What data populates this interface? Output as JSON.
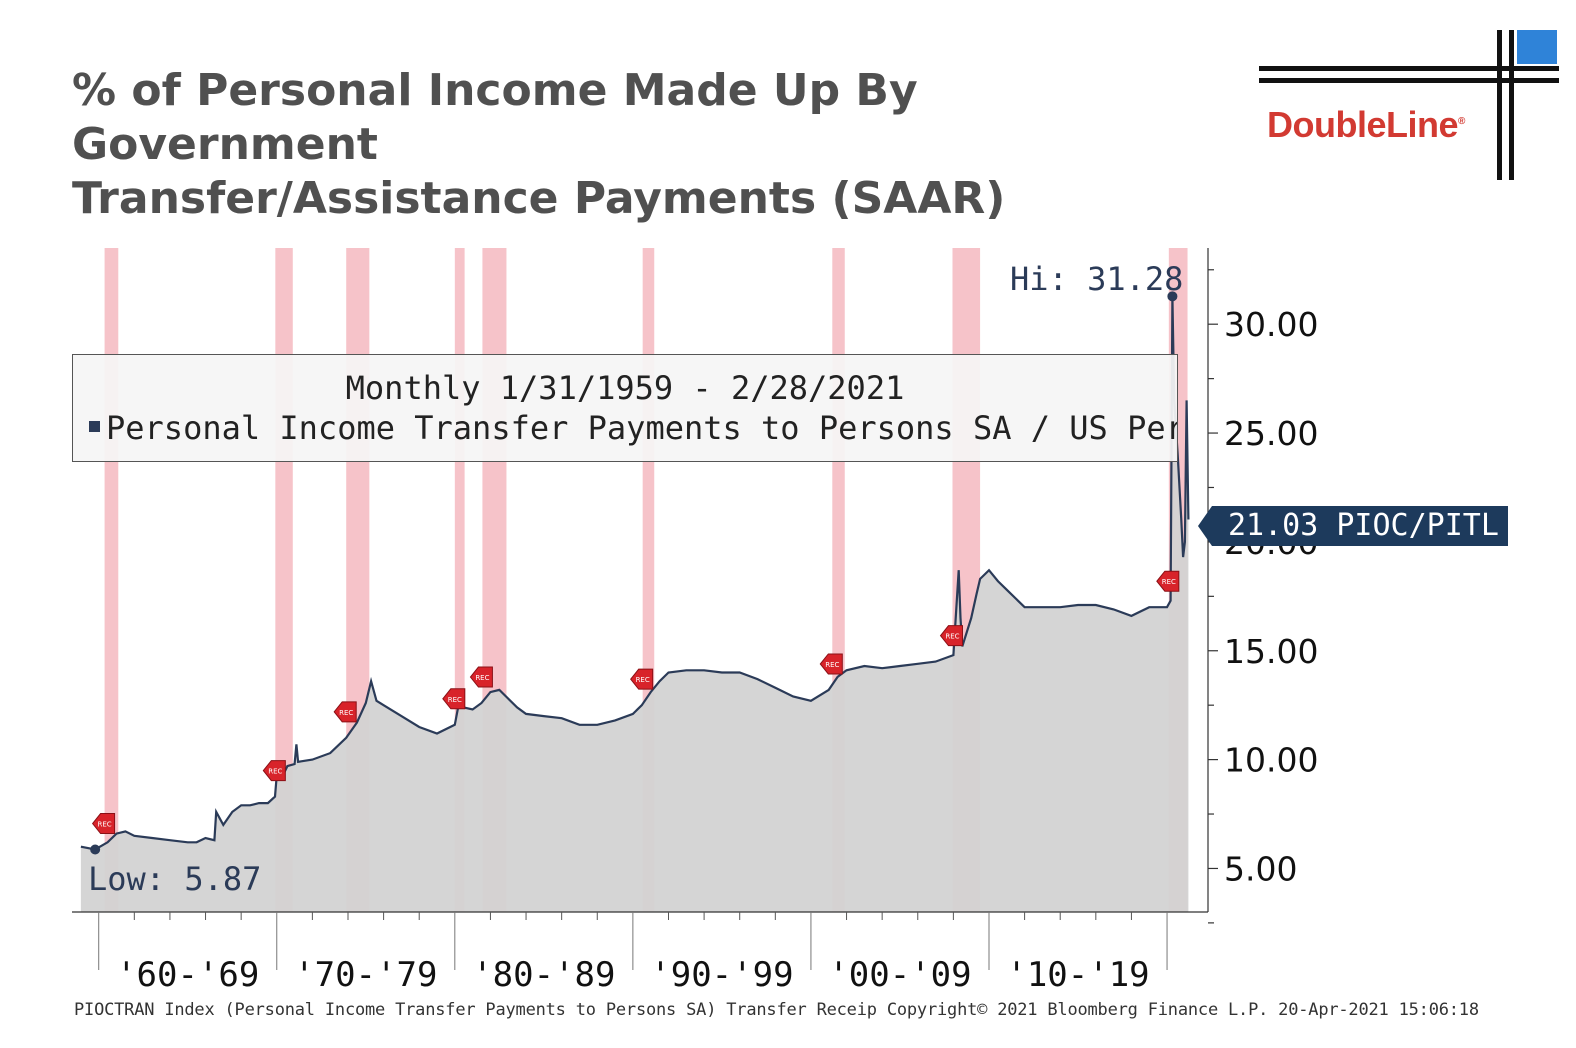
{
  "title_line1": "% of Personal Income Made Up By Government",
  "title_line2": "Transfer/Assistance Payments (SAAR)",
  "logo": {
    "text": "DoubleLine",
    "mark": "®"
  },
  "footer": "PIOCTRAN Index (Personal Income Transfer Payments to Persons SA) Transfer Receip  Copyright© 2021 Bloomberg Finance L.P.  20-Apr-2021 15:06:18",
  "legend": {
    "period": "Monthly 1/31/1959 - 2/28/2021",
    "series_label": "Personal Income Transfer Payments to Persons SA / US Personal Income"
  },
  "colors": {
    "series_line": "#2b3b58",
    "area_fill": "#d3d3d3",
    "recession": "#f5b8bf",
    "last_tag": "#1d3a5c",
    "logo_red": "#d23a32"
  },
  "recession_marker_text": "REC",
  "chart_data": {
    "type": "area",
    "xlim": [
      1958.5,
      2022.3
    ],
    "ylim": [
      3.0,
      33.5
    ],
    "y_ticks": [
      5,
      10,
      15,
      20,
      25,
      30
    ],
    "y_tick_labels": [
      "5.00",
      "10.00",
      "15.00",
      "20.00",
      "25.00",
      "30.00"
    ],
    "x_category_labels": [
      "'60-'69",
      "'70-'79",
      "'80-'89",
      "'90-'99",
      "'00-'09",
      "'10-'19"
    ],
    "x_category_starts": [
      1960,
      1970,
      1980,
      1990,
      2000,
      2010,
      2020
    ],
    "recessions": [
      [
        1960.33,
        1961.1
      ],
      [
        1969.92,
        1970.9
      ],
      [
        1973.9,
        1975.2
      ],
      [
        1980.0,
        1980.55
      ],
      [
        1981.55,
        1982.9
      ],
      [
        1990.55,
        1991.2
      ],
      [
        2001.2,
        2001.9
      ],
      [
        2007.95,
        2009.5
      ],
      [
        2020.1,
        2021.15
      ]
    ],
    "series": [
      {
        "x": [
          1959.0,
          1959.8,
          1960.5,
          1961.0,
          1961.5,
          1962.0,
          1963.0,
          1964.0,
          1965.0,
          1965.5,
          1966.0,
          1966.5,
          1966.6,
          1967.0,
          1967.5,
          1968.0,
          1968.5,
          1969.0,
          1969.5,
          1969.9,
          1970.0,
          1970.3,
          1970.6,
          1971.0,
          1971.1,
          1971.2,
          1972.0,
          1973.0,
          1973.9,
          1974.5,
          1975.0,
          1975.3,
          1975.6,
          1976.0,
          1977.0,
          1978.0,
          1979.0,
          1980.0,
          1980.3,
          1980.5,
          1981.0,
          1981.5,
          1982.0,
          1982.5,
          1983.0,
          1983.5,
          1984.0,
          1985.0,
          1986.0,
          1987.0,
          1988.0,
          1989.0,
          1990.0,
          1990.5,
          1991.0,
          1991.5,
          1992.0,
          1993.0,
          1994.0,
          1995.0,
          1996.0,
          1997.0,
          1998.0,
          1999.0,
          2000.0,
          2001.0,
          2001.5,
          2002.0,
          2003.0,
          2004.0,
          2005.0,
          2006.0,
          2007.0,
          2008.0,
          2008.3,
          2008.4,
          2008.5,
          2009.0,
          2009.3,
          2009.5,
          2010.0,
          2010.5,
          2011.0,
          2012.0,
          2013.0,
          2014.0,
          2015.0,
          2016.0,
          2017.0,
          2018.0,
          2019.0,
          2019.5,
          2020.0,
          2020.2,
          2020.3,
          2020.4,
          2020.6,
          2020.8,
          2020.9,
          2021.0,
          2021.1,
          2021.2
        ],
        "y": [
          6.0,
          5.87,
          6.2,
          6.6,
          6.7,
          6.5,
          6.4,
          6.3,
          6.2,
          6.2,
          6.4,
          6.3,
          7.6,
          7.0,
          7.6,
          7.9,
          7.9,
          8.0,
          8.0,
          8.3,
          9.3,
          9.2,
          9.7,
          9.8,
          10.7,
          9.9,
          10.0,
          10.3,
          11.0,
          11.7,
          12.6,
          13.6,
          12.7,
          12.5,
          12.0,
          11.5,
          11.2,
          11.6,
          12.9,
          12.4,
          12.3,
          12.6,
          13.1,
          13.2,
          12.8,
          12.4,
          12.1,
          12.0,
          11.9,
          11.6,
          11.6,
          11.8,
          12.1,
          12.5,
          13.1,
          13.6,
          14.0,
          14.1,
          14.1,
          14.0,
          14.0,
          13.7,
          13.3,
          12.9,
          12.7,
          13.2,
          13.8,
          14.1,
          14.3,
          14.2,
          14.3,
          14.4,
          14.5,
          14.8,
          18.7,
          16.5,
          15.2,
          16.5,
          17.6,
          18.3,
          18.7,
          18.2,
          17.8,
          17.0,
          17.0,
          17.0,
          17.1,
          17.1,
          16.9,
          16.6,
          17.0,
          17.0,
          17.0,
          17.3,
          31.28,
          26.5,
          24.0,
          21.0,
          19.3,
          20.0,
          26.5,
          21.03
        ]
      }
    ],
    "hi_label": "Hi: 31.28",
    "low_label": "Low: 5.87",
    "last_value_label": "21.03 PIOC/PITL"
  }
}
